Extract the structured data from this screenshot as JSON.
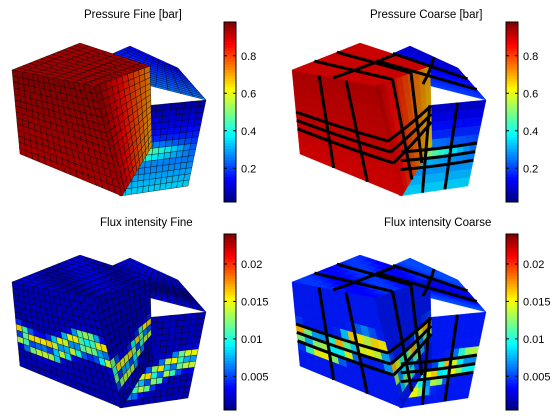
{
  "chart_data": [
    {
      "type": "heatmap",
      "title": "Pressure Fine [bar]",
      "colormap": "jet",
      "colorbar": {
        "range": [
          0.02,
          0.98
        ],
        "ticks": [
          0.2,
          0.4,
          0.6,
          0.8
        ],
        "tick_labels": [
          "0.2",
          "0.4",
          "0.6",
          "0.8"
        ]
      },
      "grid": "fine",
      "value_by_block": {
        "left_block": 0.97,
        "right_top": 0.25,
        "right_front_top": 0.05,
        "right_front_bottom": 0.35,
        "hot_band": 0.55
      }
    },
    {
      "type": "heatmap",
      "title": "Pressure Coarse [bar]",
      "colormap": "jet",
      "colorbar": {
        "range": [
          0.02,
          0.98
        ],
        "ticks": [
          0.2,
          0.4,
          0.6,
          0.8
        ],
        "tick_labels": [
          "0.2",
          "0.4",
          "0.6",
          "0.8"
        ]
      },
      "grid": "coarse",
      "value_by_block": {
        "left_block": 0.93,
        "right_top": 0.2,
        "right_front_top": 0.08,
        "right_front_bottom": 0.35,
        "hot_band": 0.55
      }
    },
    {
      "type": "heatmap",
      "title": "Flux intensity Fine",
      "colormap": "jet",
      "colorbar": {
        "range": [
          0.0005,
          0.024
        ],
        "ticks": [
          0.005,
          0.01,
          0.015,
          0.02
        ],
        "tick_labels": [
          "0.005",
          "0.01",
          "0.015",
          "0.02"
        ]
      },
      "grid": "fine",
      "value_by_block": {
        "background": 0.002,
        "band_peak": 0.016
      }
    },
    {
      "type": "heatmap",
      "title": "Flux intensity Coarse",
      "colormap": "jet",
      "colorbar": {
        "range": [
          0.0005,
          0.024
        ],
        "ticks": [
          0.005,
          0.01,
          0.015,
          0.02
        ],
        "tick_labels": [
          "0.005",
          "0.01",
          "0.015",
          "0.02"
        ]
      },
      "grid": "coarse",
      "value_by_block": {
        "background": 0.004,
        "band_peak": 0.017
      }
    }
  ]
}
